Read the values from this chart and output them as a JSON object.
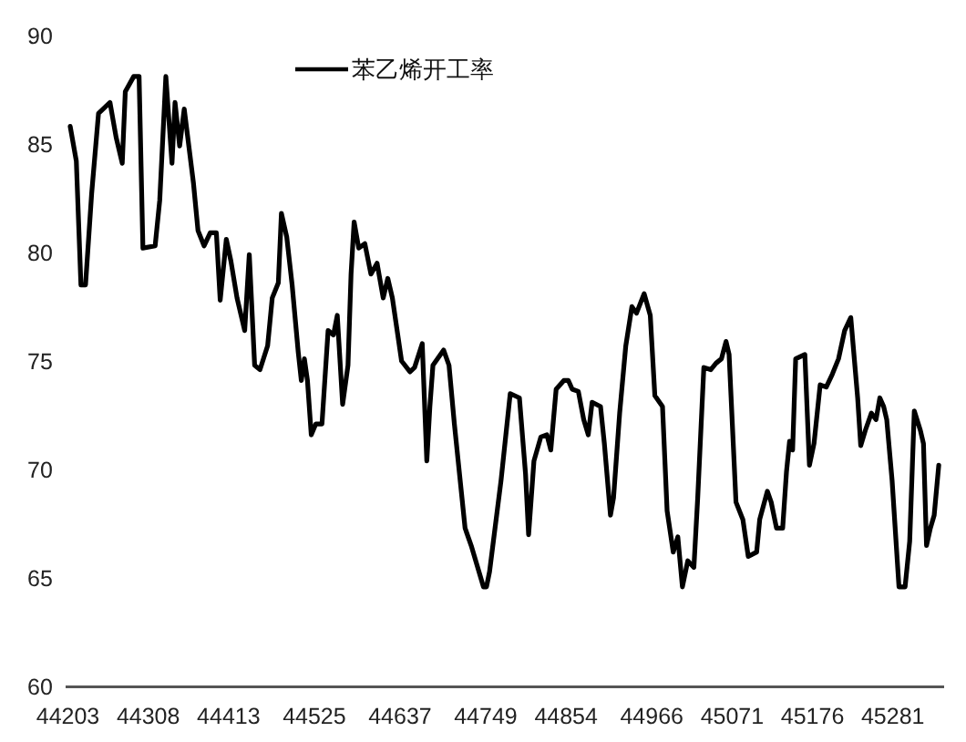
{
  "chart_data": {
    "type": "line",
    "xlim": [
      44200,
      45348
    ],
    "ylim": [
      60,
      90
    ],
    "xticks": [
      44203,
      44308,
      44413,
      44525,
      44637,
      44749,
      44854,
      44966,
      45071,
      45176,
      45281
    ],
    "yticks": [
      60,
      65,
      70,
      75,
      80,
      85,
      90
    ],
    "grid": false,
    "legend": "top",
    "marker": "none",
    "line_style": "solid",
    "series": [
      {
        "name": "苯乙烯开工率",
        "color": "#000000",
        "x": [
          44206,
          44214,
          44220,
          44226,
          44234,
          44243,
          44258,
          44266,
          44274,
          44278,
          44289,
          44296,
          44301,
          44317,
          44323,
          44331,
          44339,
          44343,
          44349,
          44355,
          44367,
          44373,
          44381,
          44389,
          44397,
          44402,
          44410,
          44416,
          44424,
          44434,
          44440,
          44447,
          44454,
          44464,
          44470,
          44478,
          44482,
          44489,
          44496,
          44504,
          44508,
          44512,
          44516,
          44521,
          44527,
          44535,
          44543,
          44550,
          44555,
          44562,
          44569,
          44573,
          44577,
          44583,
          44591,
          44599,
          44607,
          44615,
          44621,
          44627,
          44639,
          44650,
          44656,
          44666,
          44672,
          44676,
          44680,
          44694,
          44701,
          44708,
          44722,
          44730,
          44746,
          44750,
          44754,
          44769,
          44781,
          44793,
          44801,
          44805,
          44812,
          44821,
          44829,
          44834,
          44841,
          44851,
          44857,
          44862,
          44870,
          44877,
          44883,
          44888,
          44899,
          44904,
          44912,
          44916,
          44924,
          44932,
          44940,
          44946,
          44956,
          44964,
          44970,
          44980,
          44986,
          44994,
          45000,
          45006,
          45013,
          45021,
          45026,
          45034,
          45043,
          45050,
          45057,
          45063,
          45067,
          45076,
          45085,
          45092,
          45103,
          45107,
          45117,
          45122,
          45129,
          45137,
          45142,
          45146,
          45150,
          45154,
          45166,
          45172,
          45178,
          45186,
          45194,
          45202,
          45210,
          45218,
          45226,
          45235,
          45239,
          45245,
          45253,
          45259,
          45264,
          45269,
          45273,
          45280,
          45289,
          45297,
          45303,
          45309,
          45317,
          45321,
          45325,
          45330,
          45335,
          45341
        ],
        "values": [
          85.8,
          84.2,
          78.5,
          78.5,
          82.7,
          86.4,
          86.9,
          85.3,
          84.1,
          87.4,
          88.1,
          88.1,
          80.2,
          80.3,
          82.4,
          88.1,
          84.1,
          86.9,
          84.9,
          86.6,
          83.2,
          81.0,
          80.3,
          80.9,
          80.9,
          77.8,
          80.6,
          79.6,
          77.9,
          76.4,
          79.9,
          74.8,
          74.6,
          75.7,
          77.9,
          78.6,
          81.8,
          80.7,
          78.5,
          75.4,
          74.1,
          75.1,
          74.1,
          71.6,
          72.1,
          72.1,
          76.4,
          76.2,
          77.1,
          73.0,
          74.8,
          79.0,
          81.4,
          80.2,
          80.4,
          79.0,
          79.5,
          77.9,
          78.8,
          77.9,
          75.0,
          74.5,
          74.7,
          75.8,
          70.4,
          72.9,
          74.8,
          75.5,
          74.8,
          72.1,
          67.3,
          66.5,
          64.6,
          64.6,
          65.3,
          69.5,
          73.5,
          73.3,
          69.8,
          67.0,
          70.4,
          71.5,
          71.6,
          70.9,
          73.7,
          74.1,
          74.1,
          73.7,
          73.6,
          72.3,
          71.6,
          73.1,
          72.9,
          71.2,
          67.9,
          68.7,
          72.6,
          75.7,
          77.5,
          77.2,
          78.1,
          77.1,
          73.4,
          72.9,
          68.1,
          66.2,
          66.9,
          64.6,
          65.8,
          65.5,
          68.7,
          74.7,
          74.6,
          74.9,
          75.1,
          75.9,
          75.3,
          68.5,
          67.7,
          66.0,
          66.2,
          67.7,
          69.0,
          68.5,
          67.3,
          67.3,
          69.9,
          71.3,
          70.9,
          75.1,
          75.3,
          70.2,
          71.2,
          73.9,
          73.8,
          74.4,
          75.1,
          76.4,
          77.0,
          73.3,
          71.1,
          71.8,
          72.6,
          72.3,
          73.3,
          72.9,
          72.3,
          69.5,
          64.6,
          64.6,
          66.7,
          72.7,
          71.8,
          71.2,
          66.5,
          67.3,
          67.9,
          70.2
        ]
      }
    ]
  }
}
